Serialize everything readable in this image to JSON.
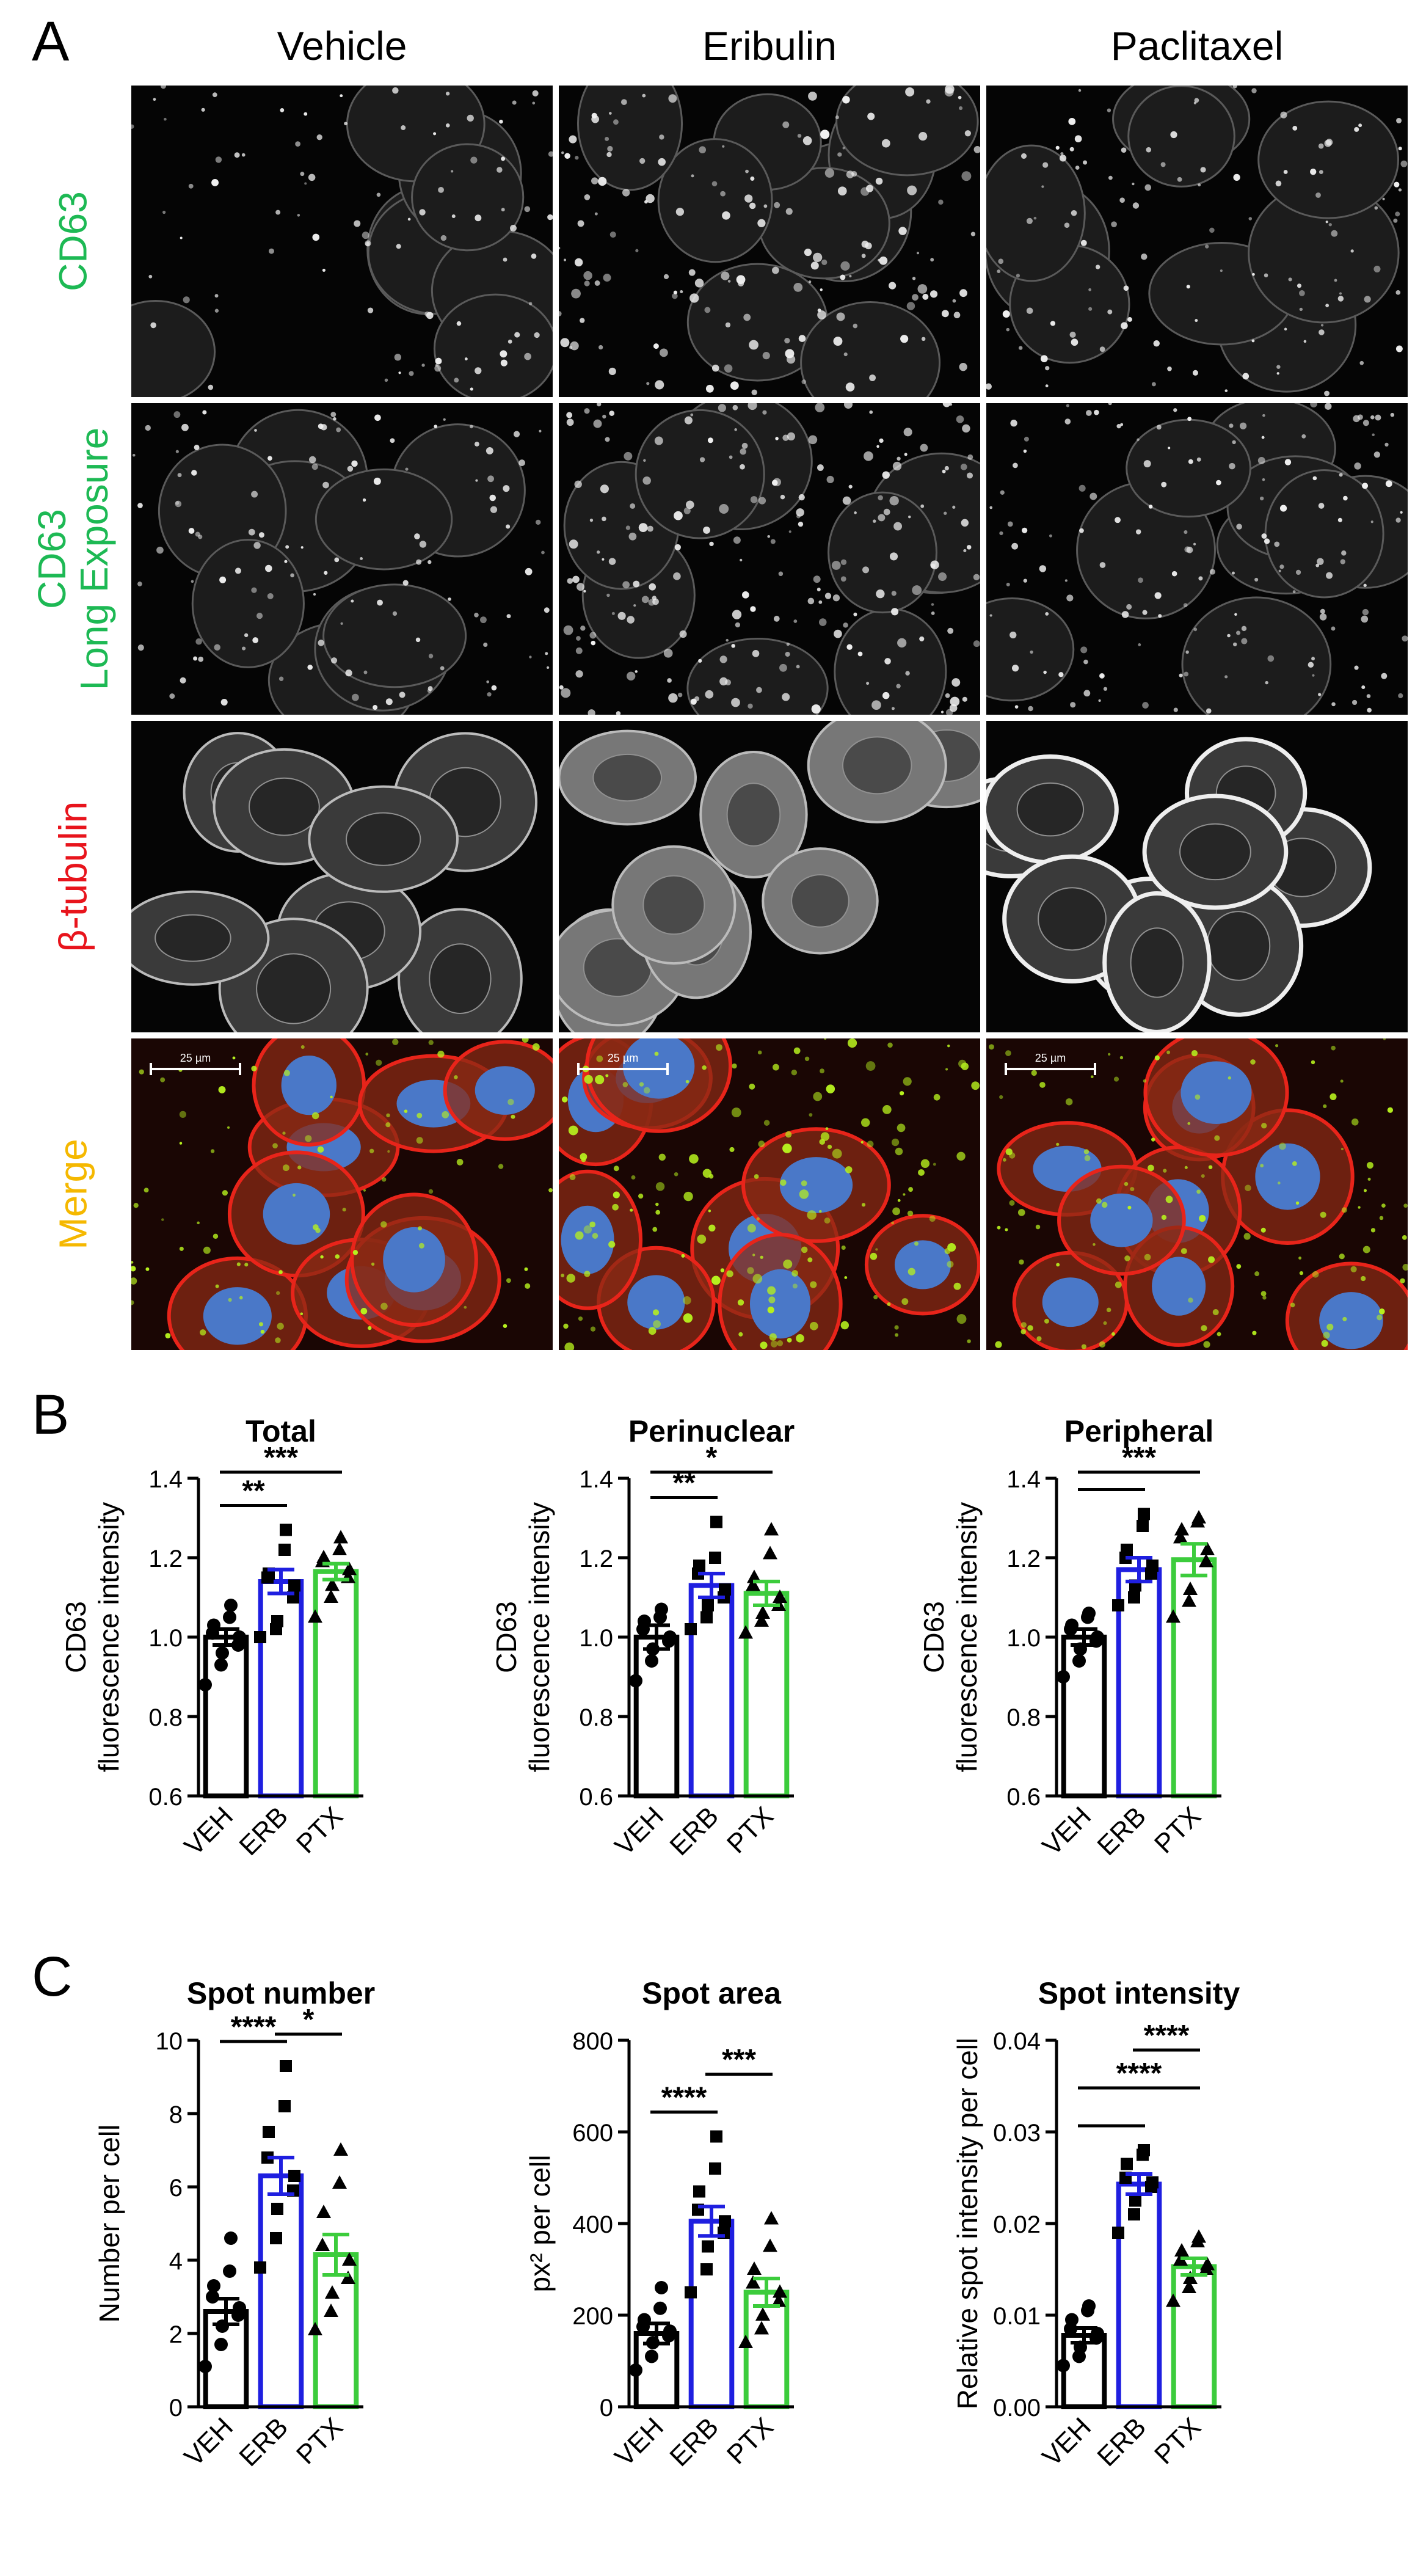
{
  "panel_letters": {
    "a": "A",
    "b": "B",
    "c": "C"
  },
  "micrographs": {
    "columns": [
      "Vehicle",
      "Eribulin",
      "Paclitaxel"
    ],
    "rows": [
      {
        "label_lines": [
          "CD63"
        ],
        "color": "#1db954"
      },
      {
        "label_lines": [
          "CD63",
          "Long Exposure"
        ],
        "color": "#1db954"
      },
      {
        "label_lines": [
          "β-tubulin"
        ],
        "color": "#e8141c"
      },
      {
        "label_lines": [
          "Merge"
        ],
        "color": "#f5b800"
      }
    ],
    "scale_bar_label": "25 µm"
  },
  "chart_data": [
    {
      "type": "bar",
      "panel": "B",
      "title": "Total",
      "ylabel_lines": [
        "CD63",
        "fluorescence intensity"
      ],
      "categories": [
        "VEH",
        "ERB",
        "PTX"
      ],
      "colors": [
        "#000000",
        "#1f1fe0",
        "#3ccc3c"
      ],
      "markers": [
        "circle",
        "square",
        "triangle"
      ],
      "values": [
        1.0,
        1.14,
        1.165
      ],
      "errors": [
        0.02,
        0.03,
        0.02
      ],
      "points": [
        [
          0.88,
          0.93,
          0.96,
          0.98,
          1.0,
          1.01,
          1.03,
          1.05,
          1.08
        ],
        [
          1.0,
          1.02,
          1.04,
          1.1,
          1.13,
          1.15,
          1.16,
          1.22,
          1.27
        ],
        [
          1.05,
          1.1,
          1.13,
          1.15,
          1.17,
          1.19,
          1.2,
          1.22,
          1.25
        ]
      ],
      "ylim": [
        0.6,
        1.4
      ],
      "yticks": [
        0.6,
        0.8,
        1.0,
        1.2,
        1.4
      ],
      "significance": [
        {
          "from": 0,
          "to": 1,
          "label": "**"
        },
        {
          "from": 0,
          "to": 2,
          "label": "***"
        }
      ]
    },
    {
      "type": "bar",
      "panel": "B",
      "title": "Perinuclear",
      "ylabel_lines": [
        "CD63",
        "fluorescence intensity"
      ],
      "categories": [
        "VEH",
        "ERB",
        "PTX"
      ],
      "colors": [
        "#000000",
        "#1f1fe0",
        "#3ccc3c"
      ],
      "markers": [
        "circle",
        "square",
        "triangle"
      ],
      "values": [
        1.0,
        1.13,
        1.11
      ],
      "errors": [
        0.03,
        0.03,
        0.03
      ],
      "points": [
        [
          0.89,
          0.94,
          0.97,
          0.99,
          1.0,
          1.02,
          1.04,
          1.05,
          1.07
        ],
        [
          1.02,
          1.05,
          1.08,
          1.1,
          1.12,
          1.16,
          1.18,
          1.2,
          1.29
        ],
        [
          1.01,
          1.04,
          1.06,
          1.08,
          1.1,
          1.13,
          1.15,
          1.21,
          1.27
        ]
      ],
      "ylim": [
        0.6,
        1.4
      ],
      "yticks": [
        0.6,
        0.8,
        1.0,
        1.2,
        1.4
      ],
      "significance": [
        {
          "from": 0,
          "to": 1,
          "label": "**"
        },
        {
          "from": 0,
          "to": 2,
          "label": "*"
        }
      ]
    },
    {
      "type": "bar",
      "panel": "B",
      "title": "Peripheral",
      "ylabel_lines": [
        "CD63",
        "fluorescence intensity"
      ],
      "categories": [
        "VEH",
        "ERB",
        "PTX"
      ],
      "colors": [
        "#000000",
        "#1f1fe0",
        "#3ccc3c"
      ],
      "markers": [
        "circle",
        "square",
        "triangle"
      ],
      "values": [
        1.0,
        1.17,
        1.195
      ],
      "errors": [
        0.02,
        0.03,
        0.04
      ],
      "points": [
        [
          0.9,
          0.94,
          0.97,
          0.99,
          1.0,
          1.02,
          1.03,
          1.05,
          1.06
        ],
        [
          1.08,
          1.1,
          1.13,
          1.16,
          1.18,
          1.2,
          1.22,
          1.28,
          1.31
        ],
        [
          1.05,
          1.09,
          1.12,
          1.19,
          1.22,
          1.25,
          1.27,
          1.29,
          1.3
        ]
      ],
      "ylim": [
        0.6,
        1.4
      ],
      "yticks": [
        0.6,
        0.8,
        1.0,
        1.2,
        1.4
      ],
      "significance": [
        {
          "from": 0,
          "to": 1,
          "label": ""
        },
        {
          "from": 0,
          "to": 2,
          "label": "***"
        }
      ]
    },
    {
      "type": "bar",
      "panel": "C",
      "title": "Spot number",
      "ylabel_lines": [
        "Number per cell"
      ],
      "categories": [
        "VEH",
        "ERB",
        "PTX"
      ],
      "colors": [
        "#000000",
        "#1f1fe0",
        "#3ccc3c"
      ],
      "markers": [
        "circle",
        "square",
        "triangle"
      ],
      "values": [
        2.6,
        6.3,
        4.15
      ],
      "errors": [
        0.35,
        0.5,
        0.55
      ],
      "points": [
        [
          1.1,
          1.7,
          2.2,
          2.5,
          2.7,
          3.0,
          3.3,
          3.7,
          4.6
        ],
        [
          3.8,
          4.6,
          5.4,
          5.9,
          6.3,
          6.8,
          7.5,
          8.2,
          9.3
        ],
        [
          2.1,
          2.6,
          3.1,
          3.5,
          4.0,
          4.4,
          5.3,
          6.1,
          7.0
        ]
      ],
      "ylim": [
        0,
        10
      ],
      "yticks": [
        0,
        2,
        4,
        6,
        8,
        10
      ],
      "significance": [
        {
          "from": 0,
          "to": 1,
          "label": "****"
        },
        {
          "from": 1,
          "to": 2,
          "label": "*"
        }
      ]
    },
    {
      "type": "bar",
      "panel": "C",
      "title": "Spot area",
      "ylabel_lines": [
        "px² per cell"
      ],
      "categories": [
        "VEH",
        "ERB",
        "PTX"
      ],
      "colors": [
        "#000000",
        "#1f1fe0",
        "#3ccc3c"
      ],
      "markers": [
        "circle",
        "square",
        "triangle"
      ],
      "values": [
        160,
        405,
        250
      ],
      "errors": [
        22,
        32,
        30
      ],
      "points": [
        [
          80,
          110,
          140,
          155,
          165,
          175,
          190,
          215,
          260
        ],
        [
          250,
          300,
          350,
          380,
          405,
          430,
          470,
          520,
          590
        ],
        [
          140,
          170,
          200,
          230,
          250,
          270,
          300,
          350,
          410
        ]
      ],
      "ylim": [
        0,
        800
      ],
      "yticks": [
        0,
        200,
        400,
        600,
        800
      ],
      "significance": [
        {
          "from": 0,
          "to": 1,
          "label": "****"
        },
        {
          "from": 1,
          "to": 2,
          "label": "***"
        }
      ]
    },
    {
      "type": "bar",
      "panel": "C",
      "title": "Spot intensity",
      "ylabel_lines": [
        "Relative spot intensity per cell"
      ],
      "categories": [
        "VEH",
        "ERB",
        "PTX"
      ],
      "colors": [
        "#000000",
        "#1f1fe0",
        "#3ccc3c"
      ],
      "markers": [
        "circle",
        "square",
        "triangle"
      ],
      "values": [
        0.0078,
        0.0243,
        0.0153
      ],
      "errors": [
        0.0008,
        0.0011,
        0.0009
      ],
      "points": [
        [
          0.0045,
          0.0055,
          0.0065,
          0.0075,
          0.008,
          0.0085,
          0.0095,
          0.0105,
          0.011
        ],
        [
          0.019,
          0.021,
          0.0225,
          0.024,
          0.0245,
          0.025,
          0.0265,
          0.0275,
          0.028
        ],
        [
          0.0115,
          0.013,
          0.014,
          0.015,
          0.0155,
          0.016,
          0.017,
          0.018,
          0.0185
        ]
      ],
      "ylim": [
        0,
        0.04
      ],
      "yticks": [
        0.0,
        0.01,
        0.02,
        0.03,
        0.04
      ],
      "tick_format": 2,
      "significance": [
        {
          "from": 0,
          "to": 1,
          "label": ""
        },
        {
          "from": 0,
          "to": 2,
          "label": "****"
        },
        {
          "from": 1,
          "to": 2,
          "label": "****"
        }
      ]
    }
  ]
}
